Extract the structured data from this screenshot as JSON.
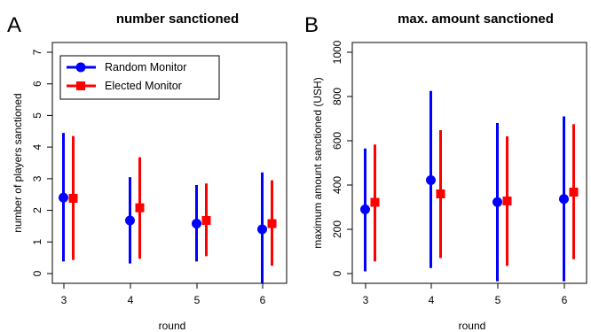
{
  "panels": [
    {
      "letter": "A",
      "chart_data": {
        "type": "scatter",
        "title": "number sanctioned",
        "xlabel": "round",
        "ylabel": "number of players sanctioned",
        "categories": [
          "3",
          "4",
          "5",
          "6"
        ],
        "ylim": [
          0,
          7
        ],
        "yticks": [
          0,
          1,
          2,
          3,
          4,
          5,
          6,
          7
        ],
        "grid": false,
        "legend": "top-left",
        "series": [
          {
            "name": "Random Monitor",
            "color": "#0000ff",
            "marker": "circle",
            "values": [
              2.4,
              1.68,
              1.58,
              1.4
            ],
            "lower": [
              0.38,
              0.32,
              0.38,
              -0.3
            ],
            "upper": [
              4.45,
              3.05,
              2.8,
              3.2
            ]
          },
          {
            "name": "Elected Monitor",
            "color": "#ff0000",
            "marker": "square",
            "values": [
              2.38,
              2.08,
              1.68,
              1.58
            ],
            "lower": [
              0.43,
              0.47,
              0.55,
              0.25
            ],
            "upper": [
              4.35,
              3.68,
              2.85,
              2.95
            ]
          }
        ]
      }
    },
    {
      "letter": "B",
      "chart_data": {
        "type": "scatter",
        "title": "max. amount sanctioned",
        "xlabel": "round",
        "ylabel": "maximum amount sanctioned (USH)",
        "categories": [
          "3",
          "4",
          "5",
          "6"
        ],
        "ylim": [
          0,
          1000
        ],
        "yticks": [
          0,
          200,
          400,
          600,
          800,
          1000
        ],
        "grid": false,
        "series": [
          {
            "name": "Random Monitor",
            "color": "#0000ff",
            "marker": "circle",
            "values": [
              290,
              422,
              323,
              337
            ],
            "lower": [
              10,
              25,
              -35,
              -35
            ],
            "upper": [
              565,
              825,
              680,
              710
            ]
          },
          {
            "name": "Elected Monitor",
            "color": "#ff0000",
            "marker": "square",
            "values": [
              322,
              360,
              328,
              368
            ],
            "lower": [
              55,
              70,
              35,
              65
            ],
            "upper": [
              583,
              648,
              620,
              675
            ]
          }
        ]
      }
    }
  ]
}
